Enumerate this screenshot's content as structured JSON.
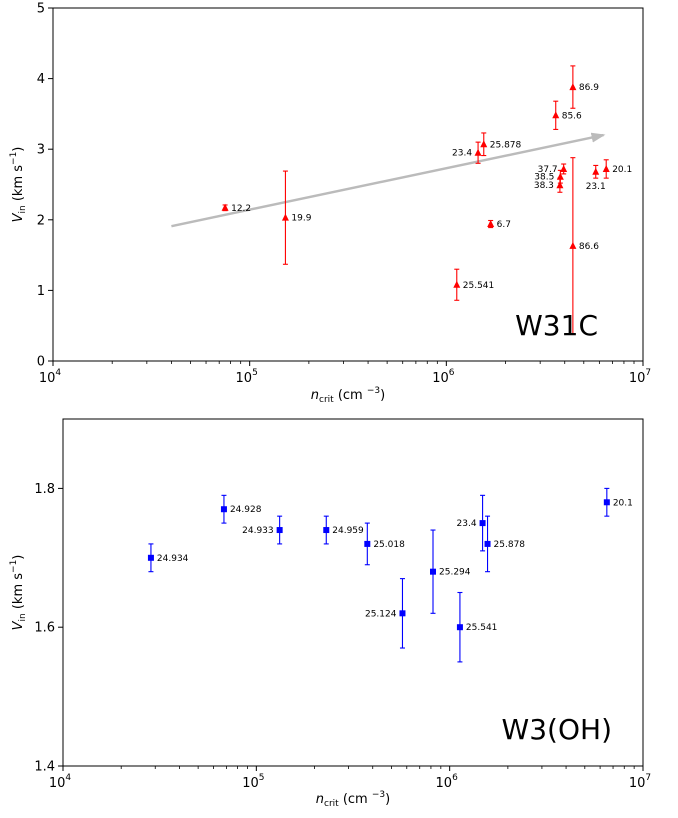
{
  "chart_data": [
    {
      "type": "scatter",
      "panel_label": "W31C",
      "xlabel": {
        "base": "n",
        "sub": "crit",
        "unit": " (cm ",
        "exp": "−3",
        "close": ")"
      },
      "ylabel": {
        "base": "V",
        "sub": "in",
        "unit": " (km s",
        "exp": "−1",
        "close": ")"
      },
      "x_scale": "log",
      "xlim": [
        10000,
        10000000
      ],
      "ylim": [
        0,
        5
      ],
      "x_ticks": [
        {
          "value": 10000,
          "base": "10",
          "exp": "4"
        },
        {
          "value": 100000,
          "base": "10",
          "exp": "5"
        },
        {
          "value": 1000000,
          "base": "10",
          "exp": "6"
        },
        {
          "value": 10000000,
          "base": "10",
          "exp": "7"
        }
      ],
      "y_ticks": [
        {
          "value": 0,
          "label": "0"
        },
        {
          "value": 1,
          "label": "1"
        },
        {
          "value": 2,
          "label": "2"
        },
        {
          "value": 3,
          "label": "3"
        },
        {
          "value": 4,
          "label": "4"
        },
        {
          "value": 5,
          "label": "5"
        }
      ],
      "marker": "triangle",
      "color": "#ff0000",
      "grid": false,
      "trend_arrow": {
        "from": [
          40000,
          1.91
        ],
        "to": [
          6300000,
          3.2
        ],
        "color": "#bbbbbb"
      },
      "points": [
        {
          "label": "12.2",
          "x": 75000,
          "y": 2.17,
          "err": 0.04,
          "label_side": "right"
        },
        {
          "label": "19.9",
          "x": 152000,
          "y": 2.03,
          "err": 0.66,
          "label_side": "right"
        },
        {
          "label": "6.7",
          "x": 1680000,
          "y": 1.94,
          "err": 0.05,
          "label_side": "right"
        },
        {
          "label": "25.541",
          "x": 1130000,
          "y": 1.08,
          "err": 0.22,
          "label_side": "right"
        },
        {
          "label": "23.4",
          "x": 1450000,
          "y": 2.95,
          "err": 0.15,
          "label_side": "left"
        },
        {
          "label": "25.878",
          "x": 1550000,
          "y": 3.07,
          "err": 0.16,
          "label_side": "right"
        },
        {
          "label": "85.6",
          "x": 3600000,
          "y": 3.48,
          "err": 0.2,
          "label_side": "right"
        },
        {
          "label": "86.9",
          "x": 4400000,
          "y": 3.88,
          "err": 0.3,
          "label_side": "right"
        },
        {
          "label": "37.7",
          "x": 3950000,
          "y": 2.72,
          "err": 0.07,
          "label_side": "left"
        },
        {
          "label": "38.5",
          "x": 3800000,
          "y": 2.61,
          "err": 0.09,
          "label_side": "left"
        },
        {
          "label": "38.3",
          "x": 3780000,
          "y": 2.49,
          "err": 0.1,
          "label_side": "left"
        },
        {
          "label": "23.1",
          "x": 5750000,
          "y": 2.68,
          "err": 0.09,
          "label_side": "below"
        },
        {
          "label": "20.1",
          "x": 6500000,
          "y": 2.72,
          "err": 0.13,
          "label_side": "right"
        },
        {
          "label": "86.6",
          "x": 4400000,
          "y": 1.63,
          "err": 1.25,
          "label_side": "right"
        }
      ]
    },
    {
      "type": "scatter",
      "panel_label": "W3(OH)",
      "xlabel": {
        "base": "n",
        "sub": "crit",
        "unit": " (cm ",
        "exp": "−3",
        "close": ")"
      },
      "ylabel": {
        "base": "V",
        "sub": "in",
        "unit": " (km s",
        "exp": "−1",
        "close": ")"
      },
      "x_scale": "log",
      "xlim": [
        10000,
        10000000
      ],
      "ylim": [
        1.4,
        1.9
      ],
      "x_ticks": [
        {
          "value": 10000,
          "base": "10",
          "exp": "4"
        },
        {
          "value": 100000,
          "base": "10",
          "exp": "5"
        },
        {
          "value": 1000000,
          "base": "10",
          "exp": "6"
        },
        {
          "value": 10000000,
          "base": "10",
          "exp": "7"
        }
      ],
      "y_ticks": [
        {
          "value": 1.4,
          "label": "1.4"
        },
        {
          "value": 1.6,
          "label": "1.6"
        },
        {
          "value": 1.8,
          "label": "1.8"
        }
      ],
      "marker": "square",
      "color": "#0000ff",
      "grid": false,
      "points": [
        {
          "label": "24.934",
          "x": 28500,
          "y": 1.7,
          "err": 0.02,
          "label_side": "right"
        },
        {
          "label": "24.928",
          "x": 68000,
          "y": 1.77,
          "err": 0.02,
          "label_side": "right"
        },
        {
          "label": "24.933",
          "x": 132000,
          "y": 1.74,
          "err": 0.02,
          "label_side": "left"
        },
        {
          "label": "24.959",
          "x": 230000,
          "y": 1.74,
          "err": 0.02,
          "label_side": "right"
        },
        {
          "label": "25.018",
          "x": 375000,
          "y": 1.72,
          "err": 0.03,
          "label_side": "right"
        },
        {
          "label": "25.124",
          "x": 570000,
          "y": 1.62,
          "err": 0.05,
          "label_side": "left"
        },
        {
          "label": "25.294",
          "x": 820000,
          "y": 1.68,
          "err": 0.06,
          "label_side": "right"
        },
        {
          "label": "25.541",
          "x": 1130000,
          "y": 1.6,
          "err": 0.05,
          "label_side": "right"
        },
        {
          "label": "23.4",
          "x": 1480000,
          "y": 1.75,
          "err": 0.04,
          "label_side": "left"
        },
        {
          "label": "25.878",
          "x": 1570000,
          "y": 1.72,
          "err": 0.04,
          "label_side": "right"
        },
        {
          "label": "20.1",
          "x": 6500000,
          "y": 1.78,
          "err": 0.02,
          "label_side": "right"
        }
      ]
    }
  ]
}
